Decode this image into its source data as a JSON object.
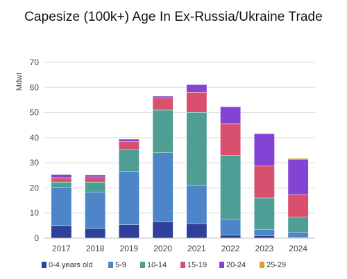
{
  "chart_data": {
    "type": "bar",
    "stacked": true,
    "title": "Capesize (100k+) Age In Ex-Russia/Ukraine Trade",
    "ylabel": "Mdwt",
    "xlabel": "",
    "ylim": [
      0,
      70
    ],
    "yticks": [
      0,
      10,
      20,
      30,
      40,
      50,
      60,
      70
    ],
    "grid": true,
    "legend_position": "bottom",
    "categories": [
      "2017",
      "2018",
      "2019",
      "2020",
      "2021",
      "2022",
      "2023",
      "2024"
    ],
    "series": [
      {
        "name": "0-4 years old",
        "color": "#2f3f9a",
        "values": [
          5.0,
          3.8,
          5.3,
          6.5,
          5.8,
          1.2,
          1.0,
          0.2
        ]
      },
      {
        "name": "5-9",
        "color": "#4d86c8",
        "values": [
          15.3,
          14.5,
          21.2,
          27.5,
          15.3,
          6.3,
          2.5,
          2.2
        ]
      },
      {
        "name": "10-14",
        "color": "#4e9e95",
        "values": [
          2.0,
          4.0,
          9.0,
          17.0,
          29.0,
          25.5,
          12.5,
          6.0
        ]
      },
      {
        "name": "15-19",
        "color": "#d9506f",
        "values": [
          1.7,
          2.0,
          3.0,
          4.8,
          8.0,
          12.5,
          12.7,
          9.0
        ]
      },
      {
        "name": "20-24",
        "color": "#8344d6",
        "values": [
          1.3,
          0.8,
          0.9,
          0.7,
          3.0,
          6.8,
          12.9,
          14.0
        ]
      },
      {
        "name": "25-29",
        "color": "#e0a020",
        "values": [
          0,
          0,
          0,
          0,
          0,
          0,
          0,
          0.4
        ]
      }
    ]
  }
}
